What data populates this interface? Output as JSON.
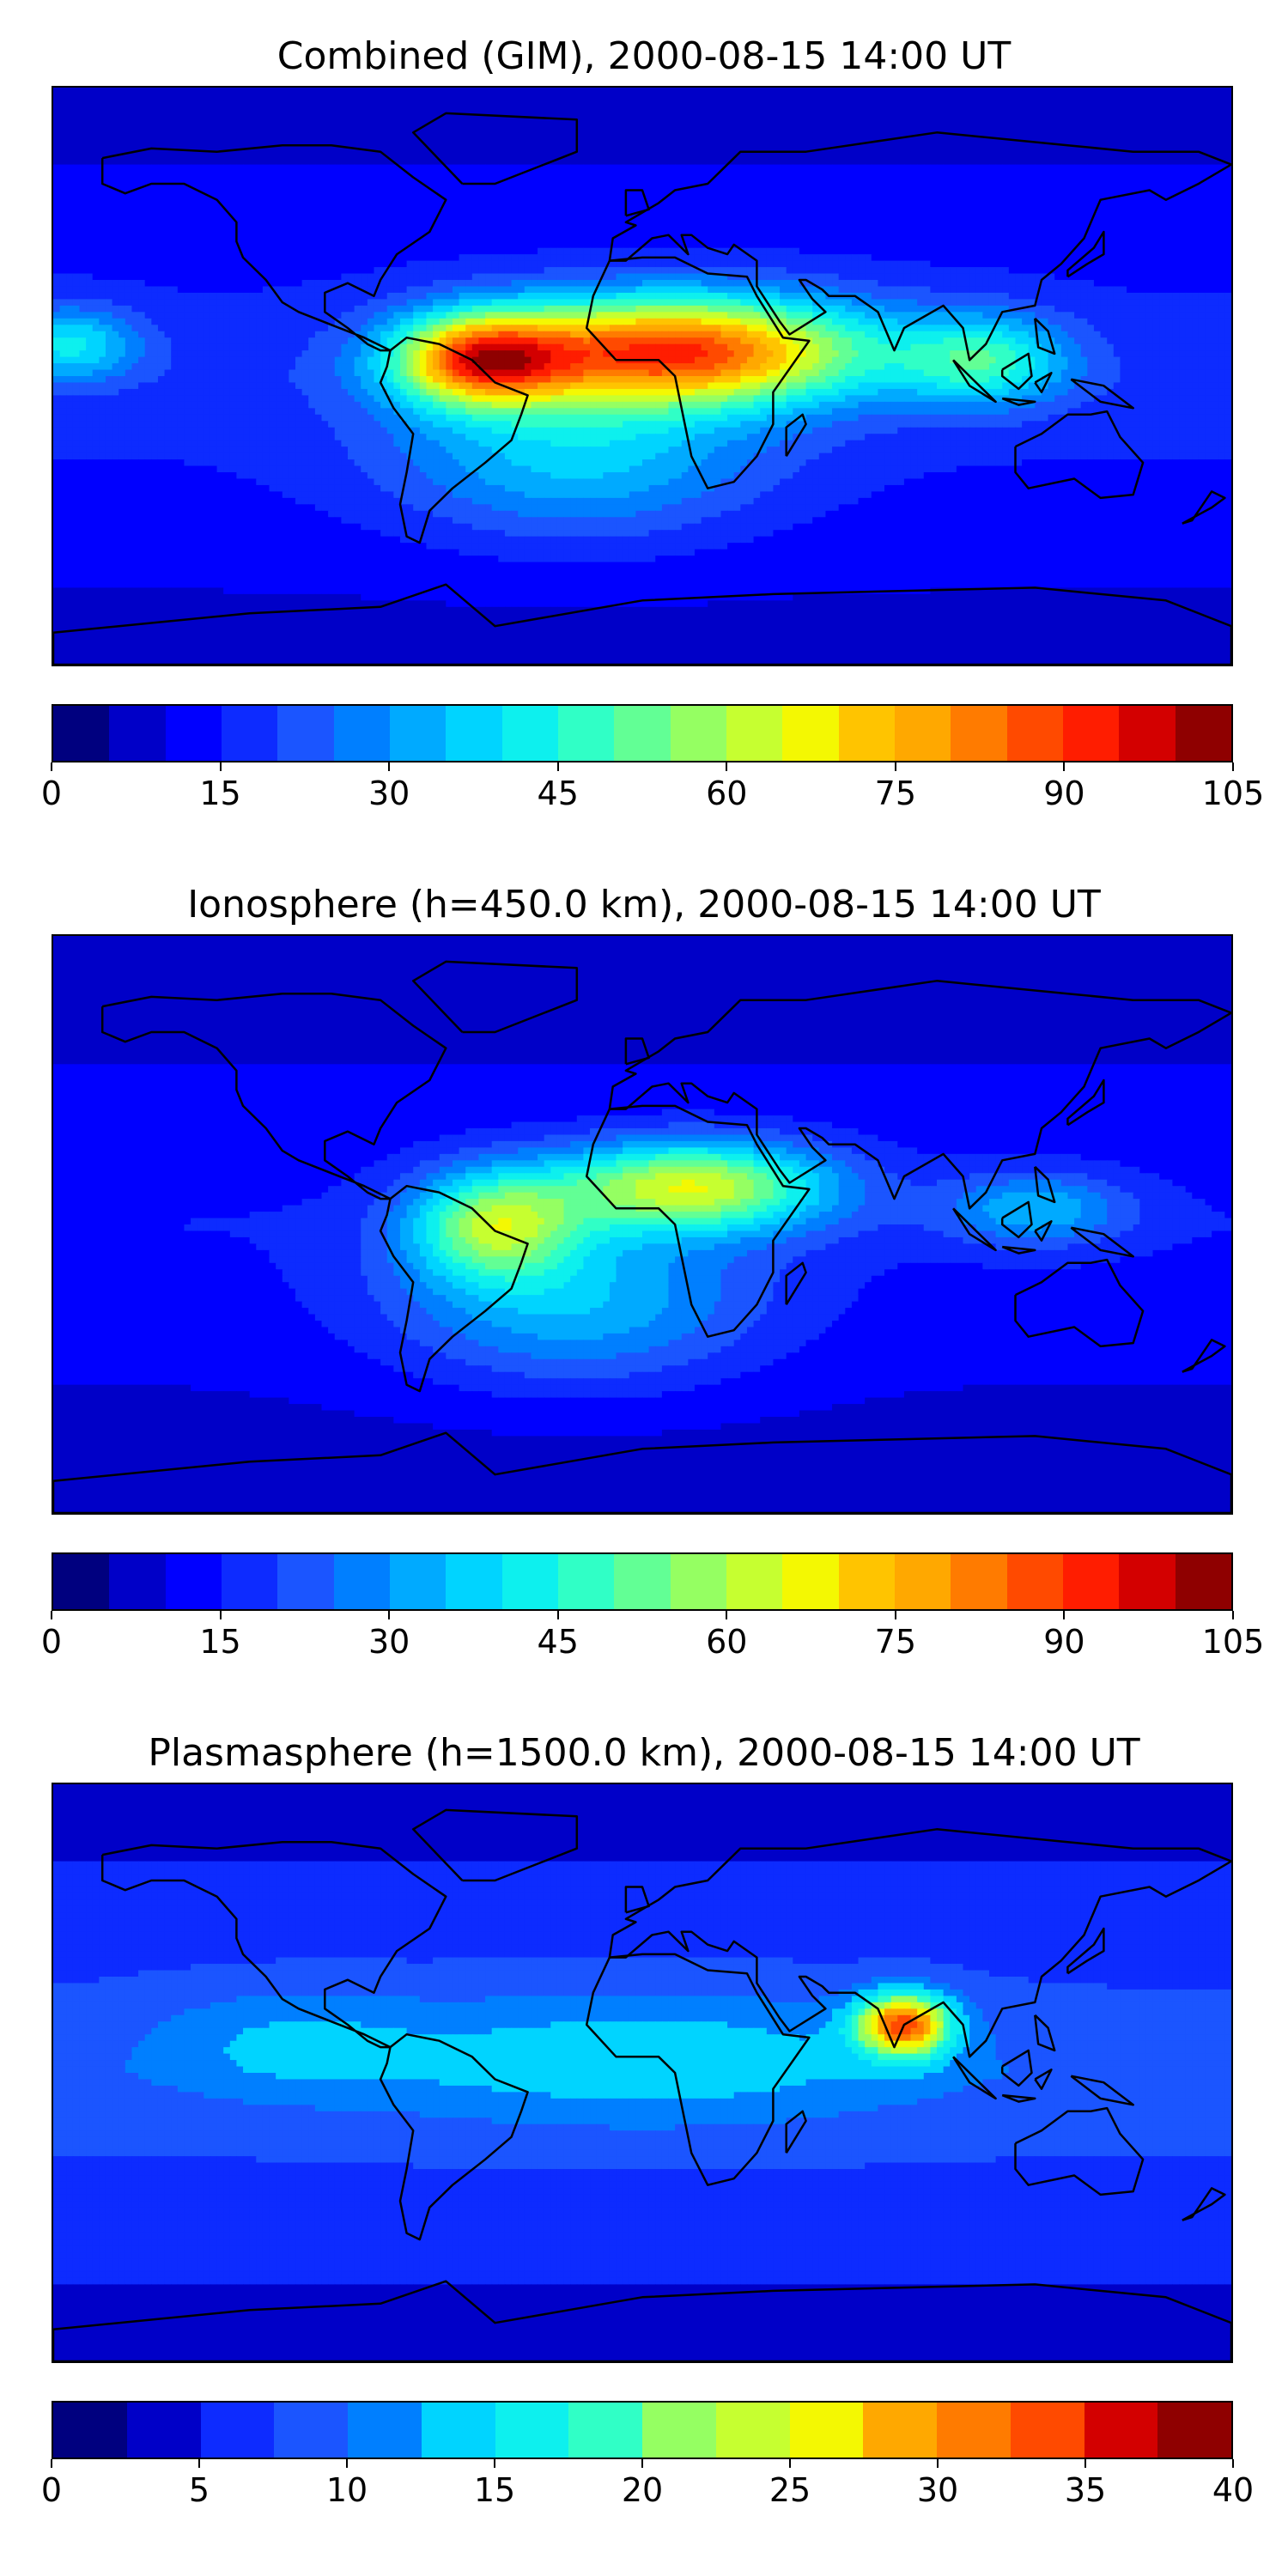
{
  "chart_data": [
    {
      "type": "heatmap",
      "title": "Combined (GIM), 2000-08-15 14:00 UT",
      "colorbar": {
        "min": 0,
        "max": 105,
        "step": 5,
        "tick_labels": [
          "0",
          "15",
          "30",
          "45",
          "60",
          "75",
          "90",
          "105"
        ]
      },
      "blobs": [
        {
          "lon": 10,
          "lat": 8,
          "amp": 72,
          "sx": 42,
          "sy": 12
        },
        {
          "lon": -50,
          "lat": 5,
          "amp": 55,
          "sx": 18,
          "sy": 10
        },
        {
          "lon": 105,
          "lat": 5,
          "amp": 28,
          "sx": 18,
          "sy": 10
        },
        {
          "lon": -175,
          "lat": 10,
          "amp": 25,
          "sx": 15,
          "sy": 8
        },
        {
          "lon": -20,
          "lat": -25,
          "amp": 22,
          "sx": 40,
          "sy": 18
        }
      ],
      "base": 18
    },
    {
      "type": "heatmap",
      "title": "Ionosphere  (h=450.0 km), 2000-08-15 14:00 UT",
      "colorbar": {
        "min": 0,
        "max": 105,
        "step": 5,
        "tick_labels": [
          "0",
          "15",
          "30",
          "45",
          "60",
          "75",
          "90",
          "105"
        ]
      },
      "blobs": [
        {
          "lon": 15,
          "lat": 12,
          "amp": 50,
          "sx": 30,
          "sy": 10
        },
        {
          "lon": -45,
          "lat": 0,
          "amp": 40,
          "sx": 18,
          "sy": 12
        },
        {
          "lon": 120,
          "lat": 5,
          "amp": 20,
          "sx": 20,
          "sy": 8
        },
        {
          "lon": -20,
          "lat": -25,
          "amp": 22,
          "sx": 40,
          "sy": 18
        }
      ],
      "base": 15
    },
    {
      "type": "heatmap",
      "title": "Plasmasphere (h=1500.0 km), 2000-08-15 14:00 UT",
      "colorbar": {
        "min": 0,
        "max": 40,
        "step": 2.5,
        "tick_labels": [
          "0",
          "5",
          "10",
          "15",
          "20",
          "25",
          "30",
          "35",
          "40"
        ]
      },
      "blobs": [
        {
          "lon": 80,
          "lat": 15,
          "amp": 24,
          "sx": 10,
          "sy": 7
        },
        {
          "lon": 0,
          "lat": 5,
          "amp": 6,
          "sx": 60,
          "sy": 15
        },
        {
          "lon": -110,
          "lat": 10,
          "amp": 4,
          "sx": 30,
          "sy": 12
        }
      ],
      "base": 9
    }
  ],
  "colormap": [
    "#00007f",
    "#0000c8",
    "#0000ff",
    "#0d2bff",
    "#1b55ff",
    "#007fff",
    "#00aaff",
    "#00d4ff",
    "#0df0ee",
    "#30ffc6",
    "#62ff95",
    "#95ff62",
    "#c6ff30",
    "#f4f802",
    "#ffc400",
    "#ffa800",
    "#ff7b00",
    "#ff4a00",
    "#ff1d00",
    "#d30000",
    "#8f0000"
  ]
}
